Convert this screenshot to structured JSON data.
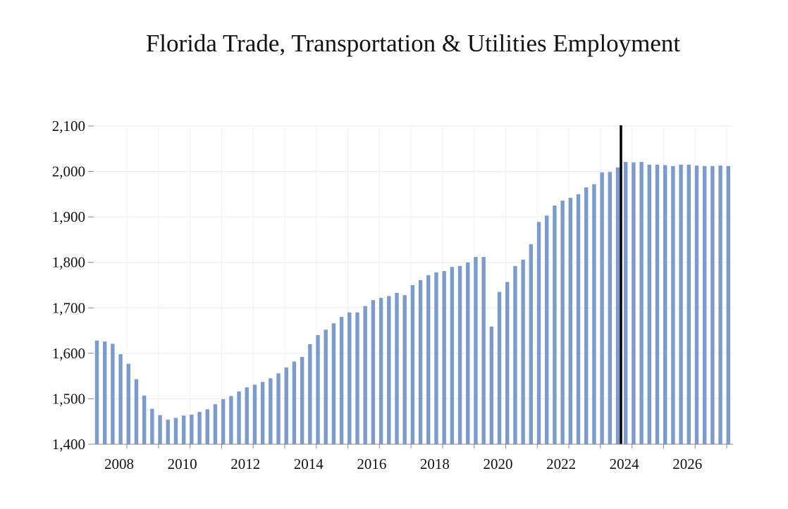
{
  "chart_data": {
    "type": "bar",
    "title": "Florida Trade, Transportation & Utilities Employment",
    "xlabel": "",
    "ylabel": "",
    "ylim": [
      1400,
      2100
    ],
    "y_ticks": [
      "1,400",
      "1,500",
      "1,600",
      "1,700",
      "1,800",
      "1,900",
      "2,000",
      "2,100"
    ],
    "y_tick_values": [
      1400,
      1500,
      1600,
      1700,
      1800,
      1900,
      2000,
      2100
    ],
    "x_ticks": [
      "2008",
      "2010",
      "2012",
      "2014",
      "2016",
      "2018",
      "2020",
      "2022",
      "2024",
      "2026"
    ],
    "x_tick_values": [
      2008,
      2010,
      2012,
      2014,
      2016,
      2018,
      2020,
      2022,
      2024,
      2026
    ],
    "grid": true,
    "bar_color": "#7b9bcc",
    "marker_line": {
      "x": 2023.6,
      "color": "#000000"
    },
    "x": [
      2007.0,
      2007.25,
      2007.5,
      2007.75,
      2008.0,
      2008.25,
      2008.5,
      2008.75,
      2009.0,
      2009.25,
      2009.5,
      2009.75,
      2010.0,
      2010.25,
      2010.5,
      2010.75,
      2011.0,
      2011.25,
      2011.5,
      2011.75,
      2012.0,
      2012.25,
      2012.5,
      2012.75,
      2013.0,
      2013.25,
      2013.5,
      2013.75,
      2014.0,
      2014.25,
      2014.5,
      2014.75,
      2015.0,
      2015.25,
      2015.5,
      2015.75,
      2016.0,
      2016.25,
      2016.5,
      2016.75,
      2017.0,
      2017.25,
      2017.5,
      2017.75,
      2018.0,
      2018.25,
      2018.5,
      2018.75,
      2019.0,
      2019.25,
      2019.5,
      2019.75,
      2020.0,
      2020.25,
      2020.5,
      2020.75,
      2021.0,
      2021.25,
      2021.5,
      2021.75,
      2022.0,
      2022.25,
      2022.5,
      2022.75,
      2023.0,
      2023.25,
      2023.5,
      2023.75,
      2024.0,
      2024.25,
      2024.5,
      2024.75,
      2025.0,
      2025.25,
      2025.5,
      2025.75,
      2026.0,
      2026.25,
      2026.5,
      2026.75,
      2027.0
    ],
    "values": [
      1628,
      1626,
      1621,
      1598,
      1577,
      1543,
      1507,
      1478,
      1464,
      1454,
      1458,
      1463,
      1465,
      1471,
      1477,
      1488,
      1499,
      1506,
      1516,
      1525,
      1531,
      1537,
      1545,
      1556,
      1569,
      1582,
      1592,
      1620,
      1640,
      1652,
      1666,
      1680,
      1690,
      1690,
      1704,
      1717,
      1722,
      1726,
      1733,
      1728,
      1750,
      1761,
      1772,
      1778,
      1781,
      1790,
      1792,
      1800,
      1812,
      1812,
      1659,
      1735,
      1757,
      1792,
      1806,
      1840,
      1889,
      1903,
      1925,
      1936,
      1942,
      1950,
      1965,
      1972,
      1998,
      1999,
      2009,
      2021,
      2020,
      2021,
      2015,
      2015,
      2014,
      2012,
      2015,
      2015,
      2013,
      2012,
      2012,
      2013,
      2012
    ]
  }
}
